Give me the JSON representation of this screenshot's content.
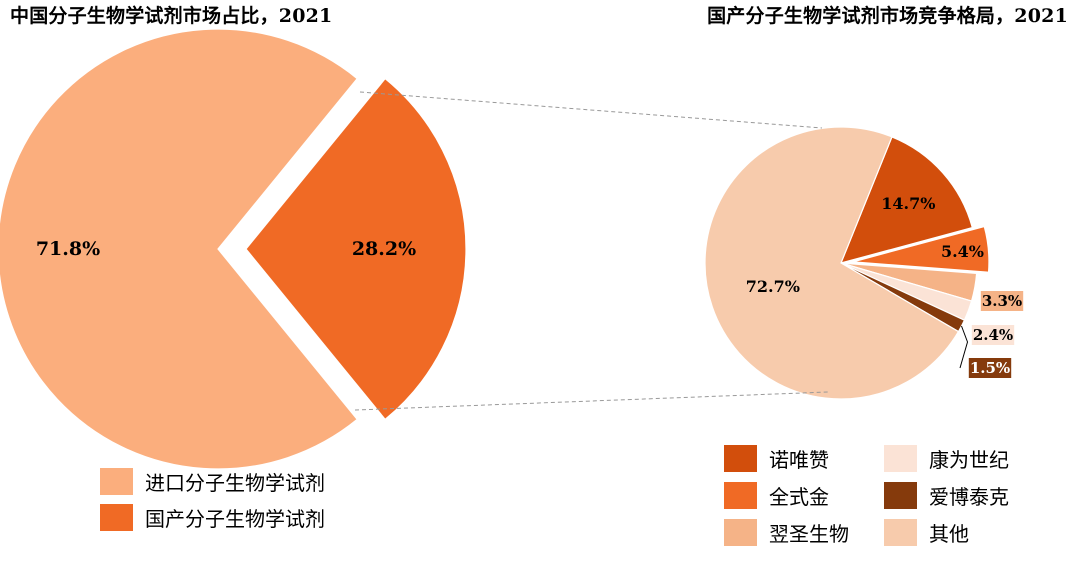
{
  "colors": {
    "imported": "#FBAE7D",
    "domestic": "#F06A25",
    "nuoweizan": "#D24E0C",
    "quanshijin": "#F06A25",
    "yishengwu": "#F5B387",
    "kangweishiji": "#FBE3D6",
    "aibotaike": "#853A0C",
    "qita": "#F7CBAC",
    "connector": "#999999"
  },
  "chart_data": [
    {
      "type": "pie",
      "title": "中国分子生物学试剂市场占比，2021",
      "slices": [
        {
          "key": "imported",
          "name": "进口分子生物学试剂",
          "value": 71.8,
          "label": "71.8%",
          "exploded": false
        },
        {
          "key": "domestic",
          "name": "国产分子生物学试剂",
          "value": 28.2,
          "label": "28.2%",
          "exploded": true
        }
      ],
      "legend_position": "bottom"
    },
    {
      "type": "pie",
      "title": "国产分子生物学试剂市场竞争格局，2021",
      "slices": [
        {
          "key": "nuoweizan",
          "name": "诺唯赞",
          "value": 14.7,
          "label": "14.7%",
          "exploded": false
        },
        {
          "key": "quanshijin",
          "name": "全式金",
          "value": 5.4,
          "label": "5.4%",
          "exploded": true
        },
        {
          "key": "yishengwu",
          "name": "翌圣生物",
          "value": 3.3,
          "label": "3.3%",
          "exploded": false
        },
        {
          "key": "kangweishiji",
          "name": "康为世纪",
          "value": 2.4,
          "label": "2.4%",
          "exploded": false
        },
        {
          "key": "aibotaike",
          "name": "爱博泰克",
          "value": 1.5,
          "label": "1.5%",
          "exploded": false
        },
        {
          "key": "qita",
          "name": "其他",
          "value": 72.7,
          "label": "72.7%",
          "exploded": false
        }
      ],
      "legend_position": "bottom",
      "legend_order": [
        "nuoweizan",
        "kangweishiji",
        "quanshijin",
        "aibotaike",
        "yishengwu",
        "qita"
      ]
    }
  ]
}
